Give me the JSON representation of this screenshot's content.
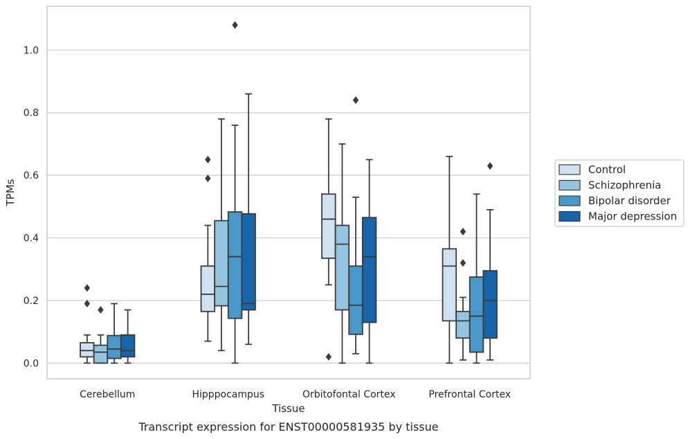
{
  "caption": "Transcript expression for ENST00000581935 by tissue",
  "chart_data": {
    "type": "boxplot",
    "xlabel": "Tissue",
    "ylabel": "TPMs",
    "ylim": [
      -0.05,
      1.14
    ],
    "yticks": [
      "0.0",
      "0.2",
      "0.4",
      "0.6",
      "0.8",
      "1.0"
    ],
    "grid": "horizontal",
    "legend_position": "right",
    "categories": [
      "Cerebellum",
      "Hipppocampus",
      "Orbitofontal Cortex",
      "Prefrontal Cortex"
    ],
    "series": [
      {
        "name": "Control",
        "color": "#d0e1f2",
        "boxes": [
          {
            "whisker_low": 0.0,
            "q1": 0.02,
            "median": 0.04,
            "q3": 0.065,
            "whisker_high": 0.09,
            "outliers": [
              0.19,
              0.24
            ]
          },
          {
            "whisker_low": 0.07,
            "q1": 0.165,
            "median": 0.22,
            "q3": 0.31,
            "whisker_high": 0.44,
            "outliers": [
              0.59,
              0.65
            ]
          },
          {
            "whisker_low": 0.25,
            "q1": 0.335,
            "median": 0.46,
            "q3": 0.54,
            "whisker_high": 0.78,
            "outliers": [
              0.02
            ]
          },
          {
            "whisker_low": 0.0,
            "q1": 0.135,
            "median": 0.31,
            "q3": 0.365,
            "whisker_high": 0.66,
            "outliers": []
          }
        ]
      },
      {
        "name": "Schizophrenia",
        "color": "#94c4df",
        "boxes": [
          {
            "whisker_low": 0.0,
            "q1": 0.0,
            "median": 0.035,
            "q3": 0.057,
            "whisker_high": 0.09,
            "outliers": [
              0.17
            ]
          },
          {
            "whisker_low": 0.04,
            "q1": 0.183,
            "median": 0.245,
            "q3": 0.455,
            "whisker_high": 0.78,
            "outliers": []
          },
          {
            "whisker_low": 0.0,
            "q1": 0.17,
            "median": 0.38,
            "q3": 0.44,
            "whisker_high": 0.7,
            "outliers": []
          },
          {
            "whisker_low": 0.01,
            "q1": 0.08,
            "median": 0.135,
            "q3": 0.165,
            "whisker_high": 0.21,
            "outliers": [
              0.32,
              0.42
            ]
          }
        ]
      },
      {
        "name": "Bipolar disorder",
        "color": "#4a98c9",
        "boxes": [
          {
            "whisker_low": 0.0,
            "q1": 0.015,
            "median": 0.045,
            "q3": 0.088,
            "whisker_high": 0.19,
            "outliers": []
          },
          {
            "whisker_low": 0.0,
            "q1": 0.143,
            "median": 0.34,
            "q3": 0.483,
            "whisker_high": 0.76,
            "outliers": [
              1.08
            ]
          },
          {
            "whisker_low": 0.03,
            "q1": 0.092,
            "median": 0.185,
            "q3": 0.31,
            "whisker_high": 0.53,
            "outliers": [
              0.84
            ]
          },
          {
            "whisker_low": 0.0,
            "q1": 0.035,
            "median": 0.15,
            "q3": 0.275,
            "whisker_high": 0.54,
            "outliers": []
          }
        ]
      },
      {
        "name": "Major depression",
        "color": "#1764ab",
        "boxes": [
          {
            "whisker_low": 0.0,
            "q1": 0.02,
            "median": 0.04,
            "q3": 0.09,
            "whisker_high": 0.17,
            "outliers": []
          },
          {
            "whisker_low": 0.06,
            "q1": 0.17,
            "median": 0.19,
            "q3": 0.477,
            "whisker_high": 0.86,
            "outliers": []
          },
          {
            "whisker_low": 0.0,
            "q1": 0.13,
            "median": 0.34,
            "q3": 0.465,
            "whisker_high": 0.65,
            "outliers": []
          },
          {
            "whisker_low": 0.01,
            "q1": 0.08,
            "median": 0.2,
            "q3": 0.295,
            "whisker_high": 0.49,
            "outliers": [
              0.63
            ]
          }
        ]
      }
    ]
  }
}
